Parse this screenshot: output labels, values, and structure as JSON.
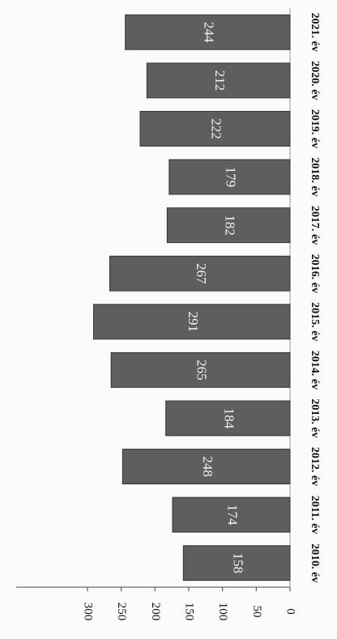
{
  "chart_data": {
    "type": "bar",
    "orientation": "horizontal",
    "categories": [
      "2010. év",
      "2011. év",
      "2012. év",
      "2013. év",
      "2014. év",
      "2015. év",
      "2016. év",
      "2017. év",
      "2018. év",
      "2019. év",
      "2020. év",
      "2021. év"
    ],
    "values": [
      158,
      174,
      248,
      184,
      265,
      291,
      267,
      182,
      179,
      222,
      212,
      244
    ],
    "color": "#5e5e5e",
    "xlim": [
      0,
      300
    ],
    "xticks": [
      0,
      50,
      100,
      150,
      200,
      250,
      300
    ]
  }
}
